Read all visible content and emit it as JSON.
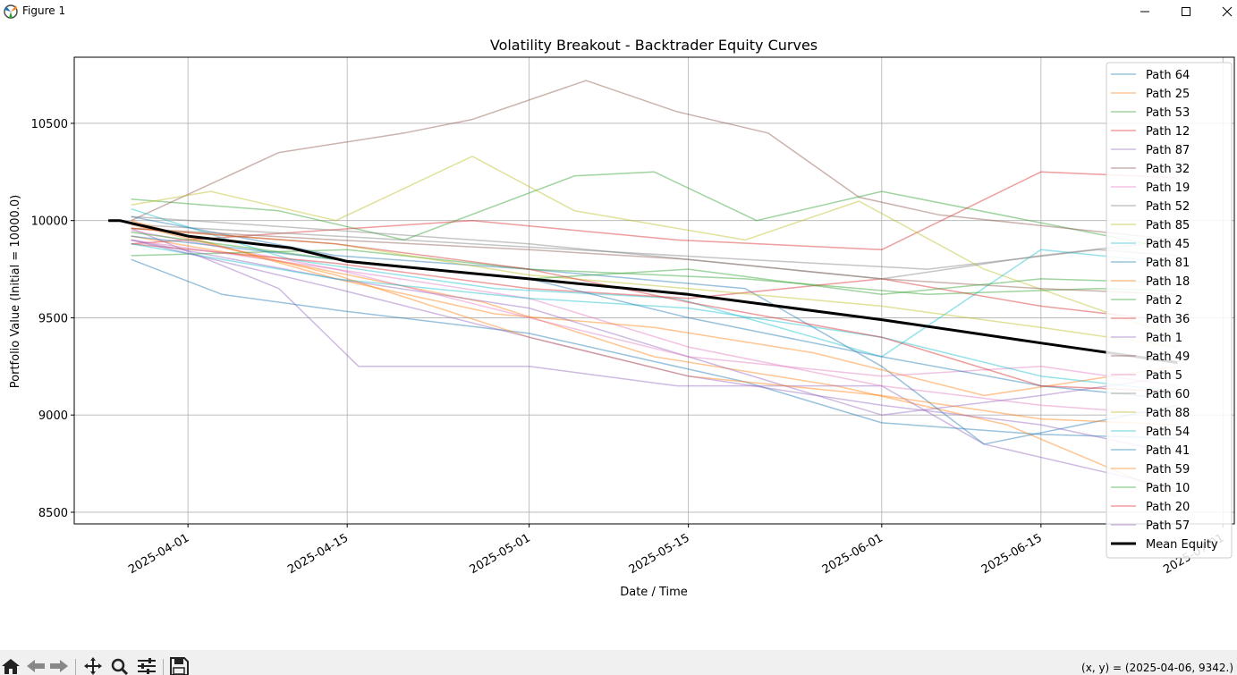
{
  "window": {
    "title": "Figure 1"
  },
  "status": {
    "coords": "(x, y) = (2025-04-06, 9342.)"
  },
  "toolbar": {
    "icons": [
      "home-icon",
      "back-icon",
      "forward-icon",
      "pan-icon",
      "zoom-icon",
      "configure-icon",
      "save-icon"
    ]
  },
  "chart_data": {
    "type": "line",
    "title": "Volatility Breakout - Backtrader Equity Curves",
    "xlabel": "Date / Time",
    "ylabel": "Portfolio Value (Initial = 10000.0)",
    "x_ticks": [
      "2025-04-01",
      "2025-04-15",
      "2025-05-01",
      "2025-05-15",
      "2025-06-01",
      "2025-06-15",
      "2025-07-01"
    ],
    "y_ticks": [
      8500,
      9000,
      9500,
      10000,
      10500
    ],
    "xlim": [
      "2025-03-22",
      "2025-07-02"
    ],
    "ylim": [
      8440,
      10840
    ],
    "grid": true,
    "legend_position": "upper-right",
    "series": [
      {
        "name": "Path 64",
        "color": "#1f77b4",
        "points": [
          [
            "2025-03-27",
            9800
          ],
          [
            "2025-04-04",
            9620
          ],
          [
            "2025-04-14",
            9540
          ],
          [
            "2025-05-01",
            9420
          ],
          [
            "2025-05-20",
            9170
          ],
          [
            "2025-06-01",
            8960
          ],
          [
            "2025-06-15",
            8900
          ],
          [
            "2025-06-27",
            8880
          ]
        ]
      },
      {
        "name": "Path 25",
        "color": "#ff7f0e",
        "points": [
          [
            "2025-03-27",
            9920
          ],
          [
            "2025-04-10",
            9780
          ],
          [
            "2025-04-27",
            9580
          ],
          [
            "2025-05-12",
            9300
          ],
          [
            "2025-05-28",
            9150
          ],
          [
            "2025-06-12",
            8950
          ],
          [
            "2025-06-27",
            8580
          ]
        ]
      },
      {
        "name": "Path 53",
        "color": "#2ca02c",
        "points": [
          [
            "2025-03-27",
            10110
          ],
          [
            "2025-04-09",
            10050
          ],
          [
            "2025-04-20",
            9900
          ],
          [
            "2025-05-05",
            10230
          ],
          [
            "2025-05-12",
            10250
          ],
          [
            "2025-05-21",
            10000
          ],
          [
            "2025-06-01",
            10150
          ],
          [
            "2025-06-27",
            9850
          ]
        ]
      },
      {
        "name": "Path 12",
        "color": "#d62728",
        "points": [
          [
            "2025-03-27",
            9880
          ],
          [
            "2025-04-13",
            9950
          ],
          [
            "2025-04-26",
            10000
          ],
          [
            "2025-05-14",
            9900
          ],
          [
            "2025-06-01",
            9850
          ],
          [
            "2025-06-15",
            10250
          ],
          [
            "2025-06-27",
            10220
          ]
        ]
      },
      {
        "name": "Path 87",
        "color": "#9467bd",
        "points": [
          [
            "2025-03-27",
            9960
          ],
          [
            "2025-04-09",
            9650
          ],
          [
            "2025-04-16",
            9250
          ],
          [
            "2025-05-01",
            9250
          ],
          [
            "2025-05-14",
            9150
          ],
          [
            "2025-06-01",
            9150
          ],
          [
            "2025-06-10",
            8850
          ],
          [
            "2025-06-27",
            8620
          ]
        ]
      },
      {
        "name": "Path 32",
        "color": "#8c564b",
        "points": [
          [
            "2025-03-27",
            10000
          ],
          [
            "2025-04-09",
            10350
          ],
          [
            "2025-04-20",
            10450
          ],
          [
            "2025-04-26",
            10520
          ],
          [
            "2025-05-06",
            10720
          ],
          [
            "2025-05-14",
            10560
          ],
          [
            "2025-05-22",
            10450
          ],
          [
            "2025-05-30",
            10120
          ],
          [
            "2025-06-06",
            10030
          ],
          [
            "2025-06-27",
            9900
          ]
        ]
      },
      {
        "name": "Path 19",
        "color": "#e377c2",
        "points": [
          [
            "2025-03-27",
            9950
          ],
          [
            "2025-04-14",
            9750
          ],
          [
            "2025-05-01",
            9600
          ],
          [
            "2025-05-15",
            9350
          ],
          [
            "2025-06-01",
            9150
          ],
          [
            "2025-06-15",
            9050
          ],
          [
            "2025-06-27",
            9000
          ]
        ]
      },
      {
        "name": "Path 52",
        "color": "#7f7f7f",
        "points": [
          [
            "2025-03-27",
            9980
          ],
          [
            "2025-04-20",
            9900
          ],
          [
            "2025-05-05",
            9850
          ],
          [
            "2025-05-20",
            9800
          ],
          [
            "2025-06-05",
            9750
          ],
          [
            "2025-06-20",
            9850
          ],
          [
            "2025-06-27",
            9820
          ]
        ]
      },
      {
        "name": "Path 85",
        "color": "#bcbd22",
        "points": [
          [
            "2025-03-27",
            10080
          ],
          [
            "2025-04-03",
            10150
          ],
          [
            "2025-04-14",
            10000
          ],
          [
            "2025-04-26",
            10330
          ],
          [
            "2025-05-05",
            10050
          ],
          [
            "2025-05-20",
            9900
          ],
          [
            "2025-05-30",
            10100
          ],
          [
            "2025-06-10",
            9750
          ],
          [
            "2025-06-27",
            9400
          ]
        ]
      },
      {
        "name": "Path 45",
        "color": "#17becf",
        "points": [
          [
            "2025-03-27",
            10060
          ],
          [
            "2025-04-10",
            9800
          ],
          [
            "2025-04-28",
            9650
          ],
          [
            "2025-05-14",
            9600
          ],
          [
            "2025-06-01",
            9300
          ],
          [
            "2025-06-15",
            9850
          ],
          [
            "2025-06-27",
            9780
          ]
        ]
      },
      {
        "name": "Path 81",
        "color": "#1f77b4",
        "points": [
          [
            "2025-03-27",
            10020
          ],
          [
            "2025-04-14",
            9820
          ],
          [
            "2025-05-01",
            9750
          ],
          [
            "2025-05-20",
            9650
          ],
          [
            "2025-06-01",
            9250
          ],
          [
            "2025-06-10",
            8850
          ],
          [
            "2025-06-27",
            9050
          ]
        ]
      },
      {
        "name": "Path 18",
        "color": "#ff7f0e",
        "points": [
          [
            "2025-03-27",
            10000
          ],
          [
            "2025-04-14",
            9700
          ],
          [
            "2025-04-28",
            9520
          ],
          [
            "2025-05-12",
            9450
          ],
          [
            "2025-05-26",
            9320
          ],
          [
            "2025-06-10",
            9100
          ],
          [
            "2025-06-27",
            9250
          ]
        ]
      },
      {
        "name": "Path 2",
        "color": "#2ca02c",
        "points": [
          [
            "2025-03-27",
            9820
          ],
          [
            "2025-04-15",
            9850
          ],
          [
            "2025-05-01",
            9750
          ],
          [
            "2025-05-20",
            9700
          ],
          [
            "2025-06-05",
            9620
          ],
          [
            "2025-06-20",
            9650
          ],
          [
            "2025-06-27",
            9640
          ]
        ]
      },
      {
        "name": "Path 36",
        "color": "#d62728",
        "points": [
          [
            "2025-03-27",
            9880
          ],
          [
            "2025-04-14",
            9780
          ],
          [
            "2025-05-01",
            9650
          ],
          [
            "2025-05-15",
            9600
          ],
          [
            "2025-06-01",
            9700
          ],
          [
            "2025-06-15",
            9560
          ],
          [
            "2025-06-27",
            9480
          ]
        ]
      },
      {
        "name": "Path 1",
        "color": "#9467bd",
        "points": [
          [
            "2025-03-27",
            9900
          ],
          [
            "2025-04-14",
            9700
          ],
          [
            "2025-05-01",
            9550
          ],
          [
            "2025-05-15",
            9300
          ],
          [
            "2025-06-01",
            9000
          ],
          [
            "2025-06-15",
            9100
          ],
          [
            "2025-06-27",
            9200
          ]
        ]
      },
      {
        "name": "Path 49",
        "color": "#8c564b",
        "points": [
          [
            "2025-03-27",
            9960
          ],
          [
            "2025-04-14",
            9900
          ],
          [
            "2025-05-01",
            9850
          ],
          [
            "2025-05-15",
            9800
          ],
          [
            "2025-06-01",
            9700
          ],
          [
            "2025-06-15",
            9650
          ],
          [
            "2025-06-27",
            9620
          ]
        ]
      },
      {
        "name": "Path 5",
        "color": "#e377c2",
        "points": [
          [
            "2025-03-27",
            9900
          ],
          [
            "2025-04-14",
            9750
          ],
          [
            "2025-05-01",
            9500
          ],
          [
            "2025-05-15",
            9300
          ],
          [
            "2025-06-01",
            9200
          ],
          [
            "2025-06-15",
            9250
          ],
          [
            "2025-06-27",
            9150
          ]
        ]
      },
      {
        "name": "Path 60",
        "color": "#7f7f7f",
        "points": [
          [
            "2025-03-27",
            10020
          ],
          [
            "2025-04-14",
            9950
          ],
          [
            "2025-05-01",
            9880
          ],
          [
            "2025-05-15",
            9800
          ],
          [
            "2025-06-01",
            9700
          ],
          [
            "2025-06-15",
            9820
          ],
          [
            "2025-06-27",
            9900
          ]
        ]
      },
      {
        "name": "Path 88",
        "color": "#bcbd22",
        "points": [
          [
            "2025-03-27",
            9960
          ],
          [
            "2025-04-14",
            9880
          ],
          [
            "2025-05-01",
            9720
          ],
          [
            "2025-05-15",
            9650
          ],
          [
            "2025-06-01",
            9560
          ],
          [
            "2025-06-15",
            9450
          ],
          [
            "2025-06-27",
            9350
          ]
        ]
      },
      {
        "name": "Path 54",
        "color": "#17becf",
        "points": [
          [
            "2025-03-27",
            9880
          ],
          [
            "2025-04-14",
            9700
          ],
          [
            "2025-05-01",
            9600
          ],
          [
            "2025-05-15",
            9550
          ],
          [
            "2025-06-01",
            9400
          ],
          [
            "2025-06-15",
            9200
          ],
          [
            "2025-06-27",
            9120
          ]
        ]
      },
      {
        "name": "Path 41",
        "color": "#1f77b4",
        "points": [
          [
            "2025-03-27",
            9920
          ],
          [
            "2025-04-14",
            9800
          ],
          [
            "2025-05-01",
            9700
          ],
          [
            "2025-05-15",
            9500
          ],
          [
            "2025-06-01",
            9300
          ],
          [
            "2025-06-15",
            9150
          ],
          [
            "2025-06-27",
            9080
          ]
        ]
      },
      {
        "name": "Path 59",
        "color": "#ff7f0e",
        "points": [
          [
            "2025-03-27",
            9980
          ],
          [
            "2025-04-14",
            9720
          ],
          [
            "2025-05-01",
            9400
          ],
          [
            "2025-05-15",
            9200
          ],
          [
            "2025-06-01",
            9100
          ],
          [
            "2025-06-15",
            8980
          ],
          [
            "2025-06-27",
            8950
          ]
        ]
      },
      {
        "name": "Path 10",
        "color": "#2ca02c",
        "points": [
          [
            "2025-03-27",
            9940
          ],
          [
            "2025-04-14",
            9800
          ],
          [
            "2025-05-01",
            9700
          ],
          [
            "2025-05-15",
            9750
          ],
          [
            "2025-06-01",
            9620
          ],
          [
            "2025-06-15",
            9700
          ],
          [
            "2025-06-27",
            9680
          ]
        ]
      },
      {
        "name": "Path 20",
        "color": "#d62728",
        "points": [
          [
            "2025-03-27",
            9960
          ],
          [
            "2025-04-14",
            9880
          ],
          [
            "2025-05-01",
            9750
          ],
          [
            "2025-05-15",
            9580
          ],
          [
            "2025-06-01",
            9400
          ],
          [
            "2025-06-15",
            9150
          ],
          [
            "2025-06-27",
            9120
          ]
        ]
      },
      {
        "name": "Path 57",
        "color": "#9467bd",
        "points": [
          [
            "2025-03-27",
            9900
          ],
          [
            "2025-04-14",
            9650
          ],
          [
            "2025-05-01",
            9400
          ],
          [
            "2025-05-15",
            9200
          ],
          [
            "2025-06-01",
            9050
          ],
          [
            "2025-06-15",
            8950
          ],
          [
            "2025-06-27",
            8800
          ]
        ]
      },
      {
        "name": "Mean Equity",
        "color": "#000000",
        "mean": true,
        "points": [
          [
            "2025-03-25",
            10000
          ],
          [
            "2025-03-26",
            10000
          ],
          [
            "2025-04-01",
            9920
          ],
          [
            "2025-04-10",
            9860
          ],
          [
            "2025-04-15",
            9790
          ],
          [
            "2025-05-01",
            9700
          ],
          [
            "2025-05-15",
            9620
          ],
          [
            "2025-06-01",
            9490
          ],
          [
            "2025-06-15",
            9370
          ],
          [
            "2025-06-27",
            9270
          ]
        ]
      }
    ]
  }
}
